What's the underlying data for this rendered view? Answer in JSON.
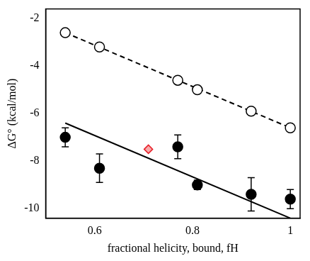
{
  "chart_data": {
    "type": "scatter",
    "x_label": "fractional helicity, bound, fH",
    "y_label": "ΔG° (kcal/mol)",
    "xlim": [
      0.5,
      1.02
    ],
    "xticks": [
      0.6,
      0.8,
      1
    ],
    "ylim": [
      -10.4,
      -1.6
    ],
    "yticks": [
      -10,
      -8,
      -6,
      -4,
      -2
    ],
    "grid": false,
    "series": [
      {
        "type": "line",
        "line_style": "dashed",
        "color": "#000000",
        "x": [
          0.54,
          1.0
        ],
        "values": [
          -2.6,
          -6.6
        ]
      },
      {
        "type": "line",
        "line_style": "solid",
        "color": "#000000",
        "x": [
          0.54,
          1.0
        ],
        "values": [
          -6.4,
          -10.4
        ]
      },
      {
        "type": "scatter",
        "marker": "circle_open",
        "color": "#000000",
        "x": [
          0.54,
          0.61,
          0.77,
          0.81,
          0.92,
          1.0
        ],
        "values": [
          -2.6,
          -3.2,
          -4.6,
          -5.0,
          -5.9,
          -6.6
        ]
      },
      {
        "type": "scatter",
        "marker": "circle",
        "color": "#000000",
        "x": [
          0.54,
          0.61,
          0.77,
          0.81,
          0.92,
          1.0
        ],
        "values": [
          -7.0,
          -8.3,
          -7.4,
          -9.0,
          -9.4,
          -9.6
        ],
        "errors": [
          0.4,
          0.6,
          0.5,
          0.2,
          0.7,
          0.4
        ]
      },
      {
        "type": "scatter",
        "marker": "diamond",
        "color": "#e8202a",
        "x": [
          0.71
        ],
        "values": [
          -7.5
        ]
      }
    ]
  }
}
